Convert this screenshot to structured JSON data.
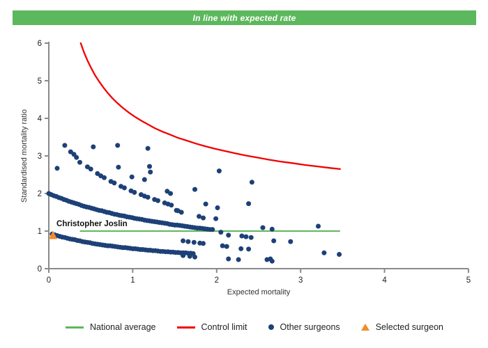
{
  "header": {
    "title": "In line with expected rate",
    "background": "#5cb85c",
    "text_color": "#ffffff"
  },
  "chart_data": {
    "type": "scatter",
    "title": "",
    "xlabel": "Expected mortality",
    "ylabel": "Standardised mortality ratio",
    "xlim": [
      0,
      5
    ],
    "ylim": [
      0,
      6
    ],
    "xticks": [
      0,
      1,
      2,
      3,
      4,
      5
    ],
    "yticks": [
      0,
      1,
      2,
      3,
      4,
      5,
      6
    ],
    "grid": false,
    "axis_color": "#8a8a8a",
    "tick_label_color": "#222222",
    "national_average": {
      "label": "National average",
      "y": 1,
      "x_start": 0.37,
      "x_end": 3.47,
      "color": "#5cb85c"
    },
    "control_limit": {
      "label": "Control limit",
      "color": "#f20000",
      "points": [
        [
          0.38,
          6.0
        ],
        [
          0.42,
          5.75
        ],
        [
          0.46,
          5.54
        ],
        [
          0.5,
          5.36
        ],
        [
          0.55,
          5.15
        ],
        [
          0.6,
          4.98
        ],
        [
          0.65,
          4.82
        ],
        [
          0.7,
          4.68
        ],
        [
          0.76,
          4.53
        ],
        [
          0.82,
          4.4
        ],
        [
          0.88,
          4.28
        ],
        [
          0.95,
          4.16
        ],
        [
          1.02,
          4.05
        ],
        [
          1.1,
          3.94
        ],
        [
          1.18,
          3.84
        ],
        [
          1.26,
          3.74
        ],
        [
          1.35,
          3.65
        ],
        [
          1.44,
          3.57
        ],
        [
          1.54,
          3.48
        ],
        [
          1.64,
          3.41
        ],
        [
          1.75,
          3.33
        ],
        [
          1.86,
          3.26
        ],
        [
          1.98,
          3.19
        ],
        [
          2.1,
          3.13
        ],
        [
          2.22,
          3.07
        ],
        [
          2.35,
          3.01
        ],
        [
          2.48,
          2.96
        ],
        [
          2.62,
          2.9
        ],
        [
          2.76,
          2.85
        ],
        [
          2.9,
          2.81
        ],
        [
          3.05,
          2.76
        ],
        [
          3.2,
          2.72
        ],
        [
          3.35,
          2.68
        ],
        [
          3.47,
          2.65
        ]
      ]
    },
    "other_surgeons": {
      "label": "Other surgeons",
      "color": "#1d4077",
      "marker": "circle",
      "marker_radius": 3.5,
      "points": [
        [
          0.04,
          0.92
        ],
        [
          0.07,
          0.9
        ],
        [
          0.1,
          0.88
        ],
        [
          0.13,
          0.86
        ],
        [
          0.16,
          0.84
        ],
        [
          0.19,
          0.83
        ],
        [
          0.22,
          0.81
        ],
        [
          0.25,
          0.79
        ],
        [
          0.28,
          0.78
        ],
        [
          0.31,
          0.77
        ],
        [
          0.34,
          0.75
        ],
        [
          0.37,
          0.74
        ],
        [
          0.4,
          0.72
        ],
        [
          0.43,
          0.71
        ],
        [
          0.46,
          0.7
        ],
        [
          0.49,
          0.69
        ],
        [
          0.52,
          0.67
        ],
        [
          0.55,
          0.66
        ],
        [
          0.58,
          0.65
        ],
        [
          0.61,
          0.64
        ],
        [
          0.64,
          0.63
        ],
        [
          0.67,
          0.62
        ],
        [
          0.7,
          0.61
        ],
        [
          0.73,
          0.61
        ],
        [
          0.76,
          0.6
        ],
        [
          0.79,
          0.59
        ],
        [
          0.82,
          0.58
        ],
        [
          0.85,
          0.57
        ],
        [
          0.88,
          0.56
        ],
        [
          0.91,
          0.56
        ],
        [
          0.94,
          0.55
        ],
        [
          0.97,
          0.54
        ],
        [
          1.0,
          0.53
        ],
        [
          1.03,
          0.53
        ],
        [
          1.06,
          0.52
        ],
        [
          1.09,
          0.51
        ],
        [
          1.12,
          0.51
        ],
        [
          1.15,
          0.5
        ],
        [
          1.18,
          0.49
        ],
        [
          1.21,
          0.49
        ],
        [
          1.24,
          0.48
        ],
        [
          1.27,
          0.48
        ],
        [
          1.3,
          0.47
        ],
        [
          1.33,
          0.46
        ],
        [
          1.36,
          0.46
        ],
        [
          1.39,
          0.45
        ],
        [
          1.42,
          0.45
        ],
        [
          1.45,
          0.44
        ],
        [
          1.48,
          0.44
        ],
        [
          1.51,
          0.43
        ],
        [
          1.54,
          0.43
        ],
        [
          1.57,
          0.42
        ],
        [
          1.6,
          0.42
        ],
        [
          1.63,
          0.42
        ],
        [
          1.66,
          0.41
        ],
        [
          1.69,
          0.41
        ],
        [
          1.72,
          0.4
        ],
        [
          0.0,
          2.0
        ],
        [
          0.03,
          1.97
        ],
        [
          0.06,
          1.94
        ],
        [
          0.09,
          1.92
        ],
        [
          0.12,
          1.89
        ],
        [
          0.15,
          1.87
        ],
        [
          0.18,
          1.84
        ],
        [
          0.21,
          1.82
        ],
        [
          0.24,
          1.79
        ],
        [
          0.27,
          1.77
        ],
        [
          0.3,
          1.75
        ],
        [
          0.33,
          1.73
        ],
        [
          0.36,
          1.71
        ],
        [
          0.39,
          1.68
        ],
        [
          0.42,
          1.66
        ],
        [
          0.45,
          1.64
        ],
        [
          0.48,
          1.63
        ],
        [
          0.51,
          1.61
        ],
        [
          0.54,
          1.59
        ],
        [
          0.57,
          1.57
        ],
        [
          0.6,
          1.55
        ],
        [
          0.63,
          1.54
        ],
        [
          0.66,
          1.52
        ],
        [
          0.69,
          1.5
        ],
        [
          0.72,
          1.49
        ],
        [
          0.75,
          1.47
        ],
        [
          0.78,
          1.45
        ],
        [
          0.81,
          1.44
        ],
        [
          0.84,
          1.42
        ],
        [
          0.87,
          1.41
        ],
        [
          0.9,
          1.4
        ],
        [
          0.93,
          1.38
        ],
        [
          0.96,
          1.37
        ],
        [
          0.99,
          1.36
        ],
        [
          1.02,
          1.34
        ],
        [
          1.05,
          1.33
        ],
        [
          1.08,
          1.32
        ],
        [
          1.11,
          1.31
        ],
        [
          1.14,
          1.29
        ],
        [
          1.17,
          1.28
        ],
        [
          1.2,
          1.27
        ],
        [
          1.23,
          1.26
        ],
        [
          1.26,
          1.25
        ],
        [
          1.29,
          1.24
        ],
        [
          1.32,
          1.23
        ],
        [
          1.35,
          1.22
        ],
        [
          1.38,
          1.21
        ],
        [
          1.41,
          1.2
        ],
        [
          1.44,
          1.18
        ],
        [
          1.47,
          1.17
        ],
        [
          1.5,
          1.16
        ],
        [
          1.53,
          1.16
        ],
        [
          1.56,
          1.15
        ],
        [
          1.59,
          1.14
        ],
        [
          1.62,
          1.13
        ],
        [
          1.65,
          1.12
        ],
        [
          1.68,
          1.11
        ],
        [
          1.71,
          1.1
        ],
        [
          1.74,
          1.09
        ],
        [
          1.77,
          1.08
        ],
        [
          1.8,
          1.08
        ],
        [
          1.83,
          1.07
        ],
        [
          1.86,
          1.06
        ],
        [
          1.89,
          1.05
        ],
        [
          1.92,
          1.04
        ],
        [
          1.95,
          1.04
        ],
        [
          0.46,
          2.71
        ],
        [
          0.5,
          2.65
        ],
        [
          0.58,
          2.53
        ],
        [
          0.62,
          2.47
        ],
        [
          0.66,
          2.42
        ],
        [
          0.74,
          2.32
        ],
        [
          0.78,
          2.28
        ],
        [
          0.86,
          2.19
        ],
        [
          0.9,
          2.15
        ],
        [
          0.98,
          2.07
        ],
        [
          1.02,
          2.03
        ],
        [
          1.1,
          1.97
        ],
        [
          1.14,
          1.93
        ],
        [
          1.18,
          1.9
        ],
        [
          1.26,
          1.84
        ],
        [
          1.3,
          1.81
        ],
        [
          1.38,
          1.75
        ],
        [
          1.42,
          1.72
        ],
        [
          1.46,
          1.69
        ],
        [
          0.1,
          2.67
        ],
        [
          0.19,
          3.28
        ],
        [
          0.26,
          3.11
        ],
        [
          0.3,
          3.04
        ],
        [
          0.33,
          2.96
        ],
        [
          0.37,
          2.83
        ],
        [
          0.53,
          3.24
        ],
        [
          0.82,
          3.28
        ],
        [
          0.83,
          2.7
        ],
        [
          0.99,
          2.44
        ],
        [
          1.14,
          2.37
        ],
        [
          1.18,
          3.2
        ],
        [
          1.2,
          2.72
        ],
        [
          1.21,
          2.57
        ],
        [
          1.41,
          2.06
        ],
        [
          1.45,
          2.0
        ],
        [
          1.52,
          1.55
        ],
        [
          1.54,
          1.54
        ],
        [
          1.58,
          1.5
        ],
        [
          1.74,
          2.11
        ],
        [
          1.79,
          1.39
        ],
        [
          1.84,
          1.35
        ],
        [
          1.87,
          1.72
        ],
        [
          1.99,
          1.33
        ],
        [
          2.01,
          1.62
        ],
        [
          2.03,
          2.6
        ],
        [
          2.38,
          1.73
        ],
        [
          2.42,
          2.3
        ],
        [
          1.6,
          0.74
        ],
        [
          1.66,
          0.72
        ],
        [
          1.73,
          0.7
        ],
        [
          1.8,
          0.68
        ],
        [
          1.84,
          0.67
        ],
        [
          2.07,
          0.61
        ],
        [
          2.12,
          0.59
        ],
        [
          2.29,
          0.53
        ],
        [
          2.38,
          0.52
        ],
        [
          2.68,
          0.74
        ],
        [
          2.88,
          0.72
        ],
        [
          1.6,
          0.35
        ],
        [
          1.68,
          0.33
        ],
        [
          1.74,
          0.31
        ],
        [
          2.14,
          0.26
        ],
        [
          2.26,
          0.24
        ],
        [
          2.6,
          0.24
        ],
        [
          2.64,
          0.26
        ],
        [
          2.66,
          0.2
        ],
        [
          3.28,
          0.42
        ],
        [
          3.46,
          0.38
        ],
        [
          2.05,
          0.97
        ],
        [
          2.14,
          0.89
        ],
        [
          2.3,
          0.87
        ],
        [
          2.35,
          0.85
        ],
        [
          2.41,
          0.83
        ],
        [
          2.55,
          1.09
        ],
        [
          2.66,
          1.05
        ],
        [
          3.21,
          1.13
        ]
      ]
    },
    "selected_surgeon": {
      "label": "Selected surgeon",
      "name": "Christopher Joslin",
      "color": "#f28b2a",
      "marker": "triangle",
      "point": [
        0.05,
        0.89
      ]
    }
  },
  "legend": {
    "items": [
      {
        "label": "National average",
        "swatch": "line",
        "color": "#5cb85c"
      },
      {
        "label": "Control limit",
        "swatch": "line",
        "color": "#f20000"
      },
      {
        "label": "Other surgeons",
        "swatch": "circle",
        "color": "#1d4077"
      },
      {
        "label": "Selected surgeon",
        "swatch": "triangle",
        "color": "#f28b2a"
      }
    ]
  }
}
